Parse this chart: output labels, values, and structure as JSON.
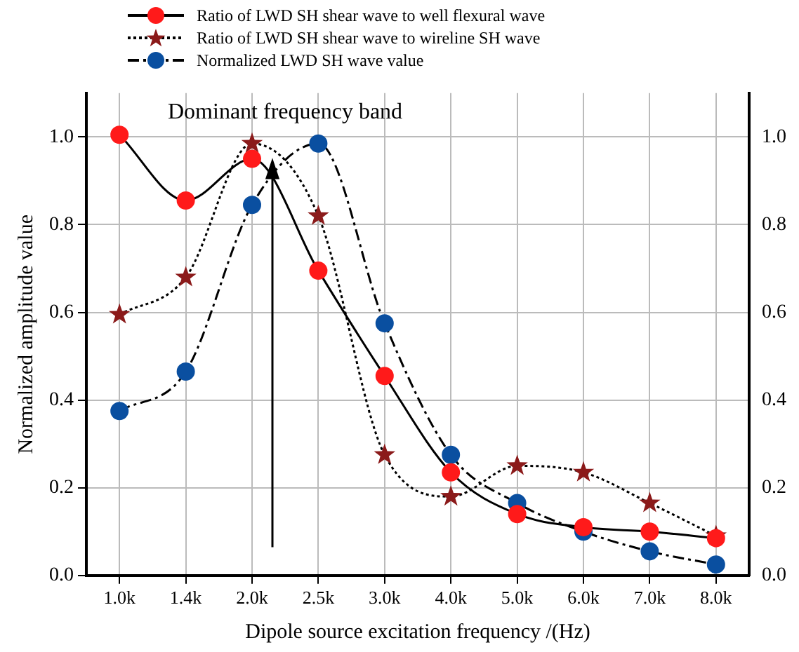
{
  "chart_data": {
    "type": "line",
    "xlabel": "Dipole source excitation frequency /(Hz)",
    "ylabel": "Normalized amplitude value",
    "categories": [
      "1.0k",
      "1.4k",
      "2.0k",
      "2.5k",
      "3.0k",
      "4.0k",
      "5.0k",
      "6.0k",
      "7.0k",
      "8.0k"
    ],
    "series": [
      {
        "name": "Ratio of LWD SH shear wave to well flexural wave",
        "color": "#ff1a1a",
        "marker": "circle",
        "line_style": "solid",
        "values": [
          1.005,
          0.855,
          0.95,
          0.695,
          0.455,
          0.235,
          0.14,
          0.11,
          0.1,
          0.085
        ]
      },
      {
        "name": "Ratio of LWD SH shear wave to wireline SH wave",
        "color": "#8b1a1a",
        "marker": "star",
        "line_style": "dotted",
        "values": [
          0.595,
          0.68,
          0.985,
          0.82,
          0.275,
          0.18,
          0.25,
          0.235,
          0.165,
          0.09
        ]
      },
      {
        "name": "Normalized LWD SH wave value",
        "color": "#0a4fa0",
        "marker": "circle",
        "line_style": "dashed",
        "values": [
          0.375,
          0.465,
          0.845,
          0.985,
          0.575,
          0.275,
          0.165,
          0.1,
          0.055,
          0.025
        ]
      }
    ],
    "ylim": [
      0,
      1.1
    ],
    "yticks": [
      {
        "value": 0,
        "label": "0.0"
      },
      0.2,
      0.4,
      0.6,
      0.8,
      {
        "value": 1,
        "label": "1.0"
      }
    ],
    "y2lim": [
      0,
      1.1
    ],
    "y2ticks": [
      {
        "value": 0,
        "label": "0.0"
      },
      0.2,
      0.4,
      0.6,
      0.8,
      {
        "value": 1,
        "label": "1.0"
      }
    ],
    "grid": true,
    "legend": "top",
    "annotations": [
      "Dominant frequency band"
    ]
  }
}
